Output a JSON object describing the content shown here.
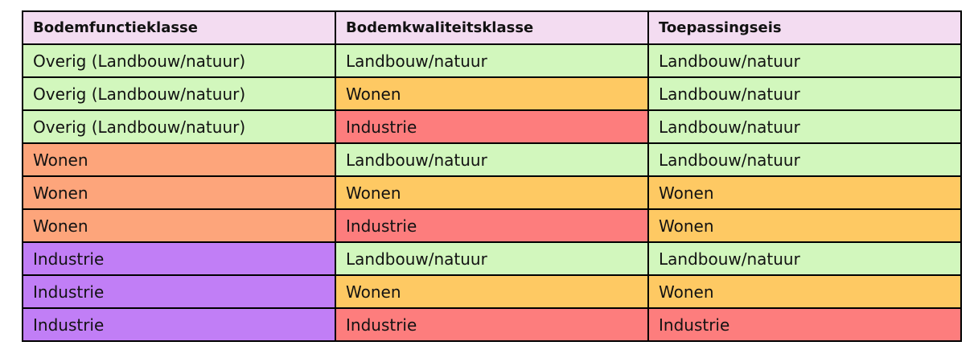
{
  "table": {
    "columns": [
      {
        "label": "Bodemfunctieklasse"
      },
      {
        "label": "Bodemkwaliteitsklasse"
      },
      {
        "label": "Toepassingseis"
      }
    ],
    "rows": [
      {
        "cells": [
          {
            "text": "Overig (Landbouw/natuur)",
            "color": "green"
          },
          {
            "text": "Landbouw/natuur",
            "color": "green"
          },
          {
            "text": "Landbouw/natuur",
            "color": "green"
          }
        ]
      },
      {
        "cells": [
          {
            "text": "Overig (Landbouw/natuur)",
            "color": "green"
          },
          {
            "text": "Wonen",
            "color": "orange"
          },
          {
            "text": "Landbouw/natuur",
            "color": "green"
          }
        ]
      },
      {
        "cells": [
          {
            "text": "Overig (Landbouw/natuur)",
            "color": "green"
          },
          {
            "text": "Industrie",
            "color": "red"
          },
          {
            "text": "Landbouw/natuur",
            "color": "green"
          }
        ]
      },
      {
        "cells": [
          {
            "text": "Wonen",
            "color": "salmon"
          },
          {
            "text": "Landbouw/natuur",
            "color": "green"
          },
          {
            "text": "Landbouw/natuur",
            "color": "green"
          }
        ]
      },
      {
        "cells": [
          {
            "text": "Wonen",
            "color": "salmon"
          },
          {
            "text": "Wonen",
            "color": "orange"
          },
          {
            "text": "Wonen",
            "color": "orange"
          }
        ]
      },
      {
        "cells": [
          {
            "text": "Wonen",
            "color": "salmon"
          },
          {
            "text": "Industrie",
            "color": "red"
          },
          {
            "text": "Wonen",
            "color": "orange"
          }
        ]
      },
      {
        "cells": [
          {
            "text": "Industrie",
            "color": "purple"
          },
          {
            "text": "Landbouw/natuur",
            "color": "green"
          },
          {
            "text": "Landbouw/natuur",
            "color": "green"
          }
        ]
      },
      {
        "cells": [
          {
            "text": "Industrie",
            "color": "purple"
          },
          {
            "text": "Wonen",
            "color": "orange"
          },
          {
            "text": "Wonen",
            "color": "orange"
          }
        ]
      },
      {
        "cells": [
          {
            "text": "Industrie",
            "color": "purple"
          },
          {
            "text": "Industrie",
            "color": "red"
          },
          {
            "text": "Industrie",
            "color": "red"
          }
        ]
      }
    ]
  },
  "colors": {
    "header_bg": "#f3dcf1",
    "green": "#d2f7bd",
    "orange": "#fec963",
    "salmon": "#fda57b",
    "red": "#fd7d7d",
    "purple": "#c17ef6",
    "border": "#000000",
    "text": "#121212"
  }
}
